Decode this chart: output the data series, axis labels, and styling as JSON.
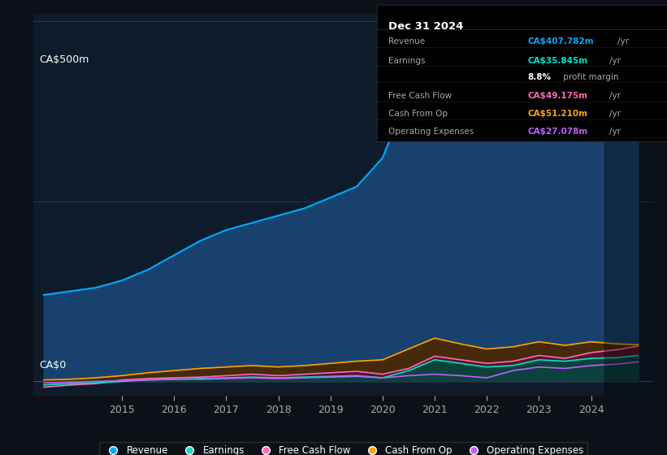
{
  "background_color": "#0d1117",
  "plot_bg_color": "#0d1b2a",
  "title_box": {
    "date": "Dec 31 2024",
    "rows": [
      {
        "label": "Revenue",
        "value": "CA$407.782m",
        "unit": "/yr",
        "value_color": "#00aaff"
      },
      {
        "label": "Earnings",
        "value": "CA$35.845m",
        "unit": "/yr",
        "value_color": "#00e5c8"
      },
      {
        "label": "",
        "value": "8.8%",
        "unit": " profit margin",
        "value_color": "#ffffff"
      },
      {
        "label": "Free Cash Flow",
        "value": "CA$49.175m",
        "unit": "/yr",
        "value_color": "#ff69b4"
      },
      {
        "label": "Cash From Op",
        "value": "CA$51.210m",
        "unit": "/yr",
        "value_color": "#ffa500"
      },
      {
        "label": "Operating Expenses",
        "value": "CA$27.078m",
        "unit": "/yr",
        "value_color": "#bf5fff"
      }
    ]
  },
  "ylabel_top": "CA$500m",
  "ylabel_zero": "CA$0",
  "x_years": [
    2013.5,
    2014,
    2014.5,
    2015,
    2015.5,
    2016,
    2016.5,
    2017,
    2017.5,
    2018,
    2018.5,
    2019,
    2019.5,
    2020,
    2020.5,
    2021,
    2021.5,
    2022,
    2022.5,
    2023,
    2023.5,
    2024,
    2024.5,
    2024.9
  ],
  "revenue": [
    120,
    125,
    130,
    140,
    155,
    175,
    195,
    210,
    220,
    230,
    240,
    255,
    270,
    310,
    400,
    490,
    460,
    430,
    420,
    410,
    380,
    355,
    370,
    408
  ],
  "earnings": [
    -5,
    -3,
    -2,
    0,
    2,
    3,
    4,
    5,
    6,
    5,
    6,
    7,
    8,
    5,
    15,
    30,
    25,
    20,
    22,
    30,
    28,
    32,
    33,
    36
  ],
  "fcf": [
    -8,
    -5,
    -3,
    2,
    4,
    5,
    6,
    8,
    10,
    8,
    10,
    12,
    14,
    10,
    18,
    35,
    30,
    25,
    28,
    36,
    32,
    40,
    44,
    49
  ],
  "cash_from_op": [
    2,
    3,
    5,
    8,
    12,
    15,
    18,
    20,
    22,
    20,
    22,
    25,
    28,
    30,
    45,
    60,
    52,
    45,
    48,
    55,
    50,
    55,
    52,
    51
  ],
  "op_expenses": [
    -2,
    -1,
    0,
    1,
    2,
    3,
    3,
    4,
    5,
    4,
    5,
    6,
    7,
    5,
    8,
    10,
    8,
    5,
    15,
    20,
    18,
    22,
    24,
    27
  ],
  "colors": {
    "revenue_line": "#00aaff",
    "revenue_fill": "#1a4a7a",
    "earnings_line": "#00e5c8",
    "earnings_fill": "#004a40",
    "fcf_line": "#ff69b4",
    "fcf_fill": "#5a1030",
    "cash_from_op_line": "#ffa500",
    "cash_from_op_fill": "#4a2800",
    "op_expenses_line": "#bf5fff",
    "op_expenses_fill": "#3a1560"
  },
  "legend": [
    {
      "label": "Revenue",
      "color": "#00aaff"
    },
    {
      "label": "Earnings",
      "color": "#00e5c8"
    },
    {
      "label": "Free Cash Flow",
      "color": "#ff69b4"
    },
    {
      "label": "Cash From Op",
      "color": "#ffa500"
    },
    {
      "label": "Operating Expenses",
      "color": "#bf5fff"
    }
  ],
  "x_tick_labels": [
    "2015",
    "2016",
    "2017",
    "2018",
    "2019",
    "2020",
    "2021",
    "2022",
    "2023",
    "2024"
  ],
  "x_tick_positions": [
    2015,
    2016,
    2017,
    2018,
    2019,
    2020,
    2021,
    2022,
    2023,
    2024
  ],
  "ylim": [
    -20,
    510
  ],
  "xlim": [
    2013.3,
    2025.2
  ]
}
